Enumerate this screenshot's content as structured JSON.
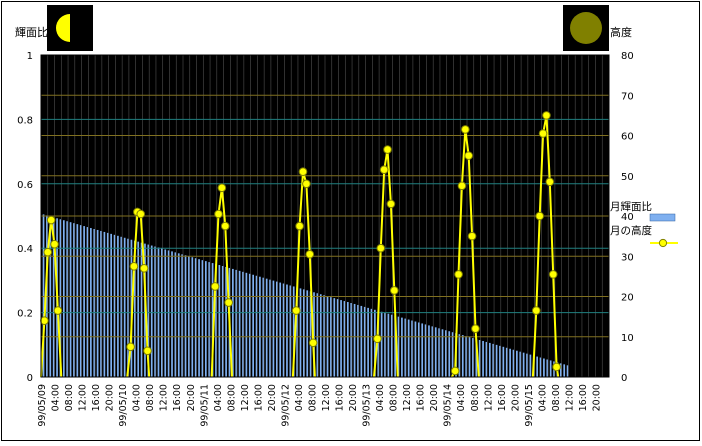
{
  "chart_data": {
    "type": "bar+line",
    "left_axis_label": "輝面比",
    "right_axis_label": "高度",
    "left_ylim": [
      0,
      1
    ],
    "left_ticks": [
      "0",
      "0.2",
      "0.4",
      "0.6",
      "0.8",
      "1"
    ],
    "right_ylim": [
      0,
      80
    ],
    "right_ticks": [
      "0",
      "10",
      "20",
      "30",
      "40",
      "50",
      "60",
      "70",
      "80"
    ],
    "legend": [
      {
        "label": "月輝面比",
        "type": "bar",
        "color": "#7fb0f0"
      },
      {
        "label": "月の高度",
        "type": "line",
        "color": "#ffff00"
      }
    ],
    "legend_position": "right",
    "grid": true,
    "moon_icons": [
      "half-moon-icon",
      "full-moon-icon"
    ],
    "x_tick_labels": [
      "99/05/09",
      "04:00",
      "08:00",
      "12:00",
      "16:00",
      "20:00",
      "99/05/10",
      "04:00",
      "08:00",
      "12:00",
      "16:00",
      "20:00",
      "99/05/11",
      "04:00",
      "08:00",
      "12:00",
      "16:00",
      "20:00",
      "99/05/12",
      "04:00",
      "08:00",
      "12:00",
      "16:00",
      "20:00",
      "99/05/13",
      "04:00",
      "08:00",
      "12:00",
      "16:00",
      "20:00",
      "99/05/14",
      "04:00",
      "08:00",
      "12:00",
      "16:00",
      "20:00",
      "99/05/15",
      "04:00",
      "08:00",
      "12:00",
      "16:00",
      "20:00"
    ],
    "bars": {
      "name": "月輝面比",
      "hours_step": 1,
      "start": 0.505,
      "end": 0.0,
      "count": 168,
      "visible_until_index": 156
    },
    "altitude_series": {
      "name": "月の高度",
      "points": [
        {
          "h": 0,
          "v": 0
        },
        {
          "h": 1,
          "v": 14
        },
        {
          "h": 2,
          "v": 31
        },
        {
          "h": 3,
          "v": 39
        },
        {
          "h": 4,
          "v": 33
        },
        {
          "h": 5,
          "v": 16.5
        },
        {
          "h": 6,
          "v": 0
        },
        {
          "h": 25.5,
          "v": 0
        },
        {
          "h": 26.5,
          "v": 7.5
        },
        {
          "h": 27.5,
          "v": 27.5
        },
        {
          "h": 28.5,
          "v": 41
        },
        {
          "h": 29.5,
          "v": 40.5
        },
        {
          "h": 30.5,
          "v": 27
        },
        {
          "h": 31.5,
          "v": 6.5
        },
        {
          "h": 32,
          "v": 0
        },
        {
          "h": 50.5,
          "v": 0
        },
        {
          "h": 51.5,
          "v": 22.5
        },
        {
          "h": 52.5,
          "v": 40.5
        },
        {
          "h": 53.5,
          "v": 47
        },
        {
          "h": 54.5,
          "v": 37.5
        },
        {
          "h": 55.5,
          "v": 18.5
        },
        {
          "h": 56.5,
          "v": 0
        },
        {
          "h": 74.5,
          "v": 0
        },
        {
          "h": 75.5,
          "v": 16.5
        },
        {
          "h": 76.5,
          "v": 37.5
        },
        {
          "h": 77.5,
          "v": 51
        },
        {
          "h": 78.5,
          "v": 48
        },
        {
          "h": 79.5,
          "v": 30.5
        },
        {
          "h": 80.5,
          "v": 8.5
        },
        {
          "h": 81,
          "v": 0
        },
        {
          "h": 98.5,
          "v": 0
        },
        {
          "h": 99.5,
          "v": 9.5
        },
        {
          "h": 100.5,
          "v": 32
        },
        {
          "h": 101.5,
          "v": 51.5
        },
        {
          "h": 102.5,
          "v": 56.5
        },
        {
          "h": 103.5,
          "v": 43
        },
        {
          "h": 104.5,
          "v": 21.5
        },
        {
          "h": 105.5,
          "v": 0
        },
        {
          "h": 121.5,
          "v": 0
        },
        {
          "h": 122.5,
          "v": 1.5
        },
        {
          "h": 123.5,
          "v": 25.5
        },
        {
          "h": 124.5,
          "v": 47.5
        },
        {
          "h": 125.5,
          "v": 61.5
        },
        {
          "h": 126.5,
          "v": 55
        },
        {
          "h": 127.5,
          "v": 35
        },
        {
          "h": 128.5,
          "v": 12
        },
        {
          "h": 129.5,
          "v": 0
        },
        {
          "h": 145.5,
          "v": 0
        },
        {
          "h": 146.5,
          "v": 16.5
        },
        {
          "h": 147.5,
          "v": 40
        },
        {
          "h": 148.5,
          "v": 60.5
        },
        {
          "h": 149.5,
          "v": 65
        },
        {
          "h": 150.5,
          "v": 48.5
        },
        {
          "h": 151.5,
          "v": 25.5
        },
        {
          "h": 152.5,
          "v": 2.5
        },
        {
          "h": 153,
          "v": 0
        }
      ]
    }
  }
}
